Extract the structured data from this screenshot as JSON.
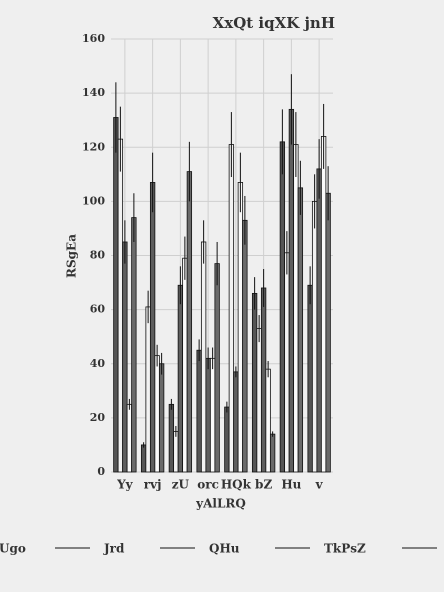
{
  "chart_data": {
    "type": "bar",
    "title": "XxQt iqXK jnH",
    "xlabel": "yAlLRQ",
    "ylabel": "RSgEa",
    "categories": [
      "Yy",
      "rvj",
      "zU",
      "orc",
      "HQk",
      "bZ",
      "Hu",
      "v"
    ],
    "series": [
      {
        "name": "Ugo",
        "color": "#555555",
        "values": [
          131,
          10,
          25,
          45,
          24,
          66,
          122,
          69
        ],
        "errors": [
          13,
          1,
          2,
          4,
          2,
          6,
          12,
          7
        ]
      },
      {
        "name": "Jrd",
        "color": "#f2f2f2",
        "values": [
          123,
          61,
          15,
          85,
          121,
          53,
          81,
          100
        ],
        "errors": [
          12,
          6,
          2,
          8,
          12,
          5,
          8,
          10
        ]
      },
      {
        "name": "QHu",
        "color": "#5e5e5e",
        "values": [
          85,
          107,
          69,
          42,
          37,
          68,
          134,
          112
        ],
        "errors": [
          8,
          11,
          7,
          4,
          2,
          7,
          13,
          11
        ]
      },
      {
        "name": "TkPsZ",
        "color": "#fafafa",
        "values": [
          25,
          43,
          79,
          42,
          107,
          38,
          121,
          124
        ],
        "errors": [
          2,
          4,
          8,
          4,
          11,
          3,
          12,
          12
        ]
      },
      {
        "color": "#6a6a6a",
        "values": [
          94,
          40,
          111,
          77,
          93,
          14,
          105,
          103
        ],
        "errors": [
          9,
          4,
          11,
          8,
          9,
          1,
          10,
          10
        ]
      }
    ],
    "ylim": [
      0,
      160
    ],
    "yticks": [
      0,
      20,
      40,
      60,
      80,
      100,
      120,
      140,
      160
    ],
    "grid": true
  }
}
